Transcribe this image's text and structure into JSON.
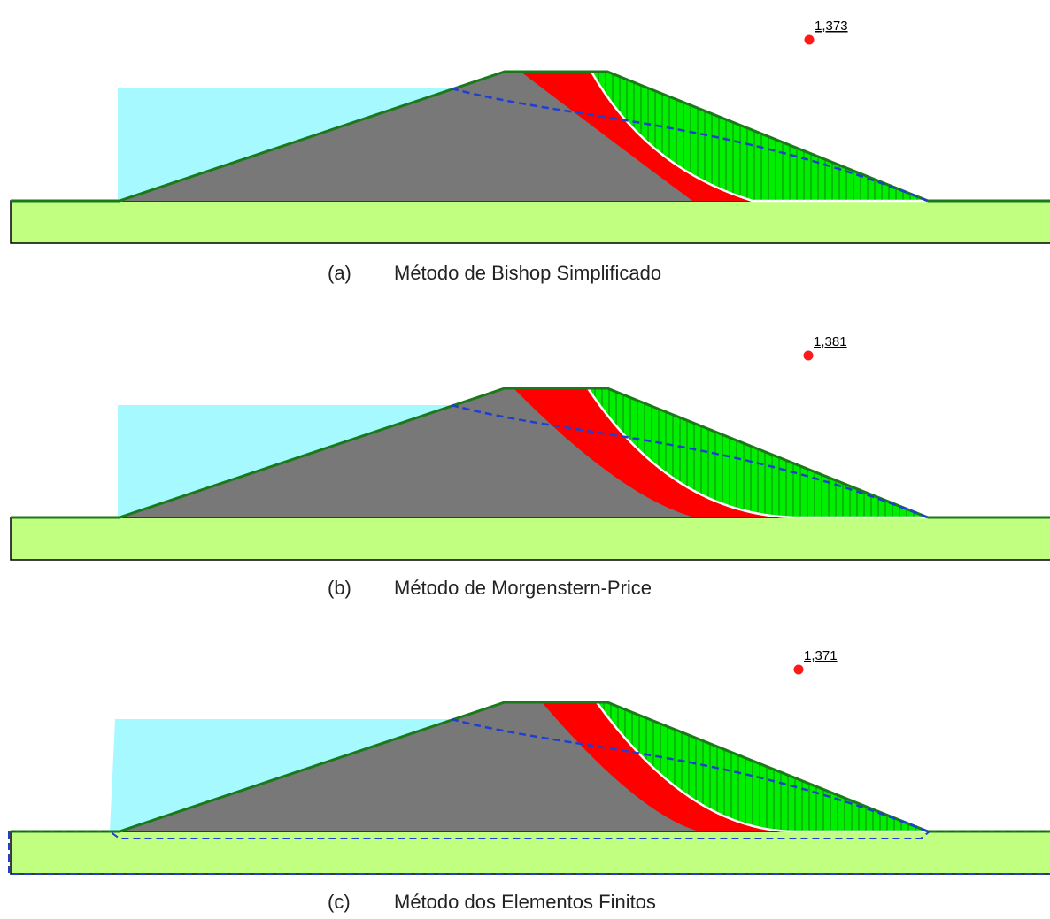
{
  "panels": [
    {
      "factor": "1,373",
      "label": "(a)",
      "caption": "Método de Bishop Simplificado"
    },
    {
      "factor": "1,381",
      "label": "(b)",
      "caption": "Método de Morgenstern-Price"
    },
    {
      "factor": "1,371",
      "label": "(c)",
      "caption": "Método dos Elementos Finitos"
    }
  ]
}
